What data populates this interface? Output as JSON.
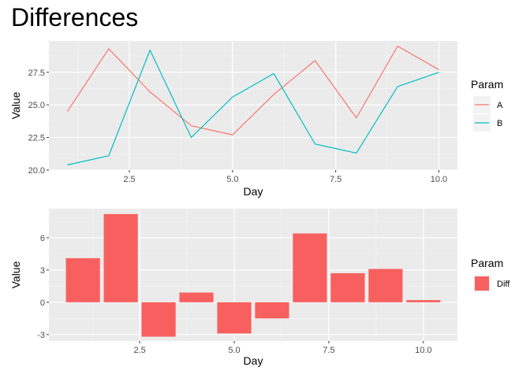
{
  "title": "Differences",
  "chart_data": [
    {
      "type": "line",
      "xlabel": "Day",
      "ylabel": "Value",
      "xlim": [
        0.55,
        10.45
      ],
      "ylim": [
        20.0,
        29.9
      ],
      "x_ticks": [
        2.5,
        5.0,
        7.5,
        10.0
      ],
      "y_ticks": [
        20.0,
        22.5,
        25.0,
        27.5
      ],
      "grid": true,
      "legend": {
        "title": "Param",
        "position": "right"
      },
      "x": [
        1,
        2,
        3,
        4,
        5,
        6,
        7,
        8,
        9,
        10
      ],
      "series": [
        {
          "name": "A",
          "color": "#F8766D",
          "values": [
            24.5,
            29.3,
            26.0,
            23.4,
            22.7,
            25.8,
            28.4,
            24.0,
            29.5,
            27.7
          ]
        },
        {
          "name": "B",
          "color": "#00BFC4",
          "values": [
            20.4,
            21.1,
            29.2,
            22.5,
            25.6,
            27.4,
            22.0,
            21.3,
            26.4,
            27.5
          ]
        }
      ]
    },
    {
      "type": "bar",
      "xlabel": "Day",
      "ylabel": "Value",
      "xlim": [
        0.1,
        10.9
      ],
      "ylim": [
        -3.6,
        8.7
      ],
      "x_ticks": [
        2.5,
        5.0,
        7.5,
        10.0
      ],
      "y_ticks": [
        -3,
        0,
        3,
        6
      ],
      "grid": true,
      "legend": {
        "title": "Param",
        "position": "right"
      },
      "x": [
        1,
        2,
        3,
        4,
        5,
        6,
        7,
        8,
        9,
        10
      ],
      "series": [
        {
          "name": "Diff",
          "color": "#F8605F",
          "values": [
            4.1,
            8.2,
            -3.2,
            0.9,
            -2.9,
            -1.5,
            6.4,
            2.7,
            3.1,
            0.2
          ]
        }
      ]
    }
  ]
}
